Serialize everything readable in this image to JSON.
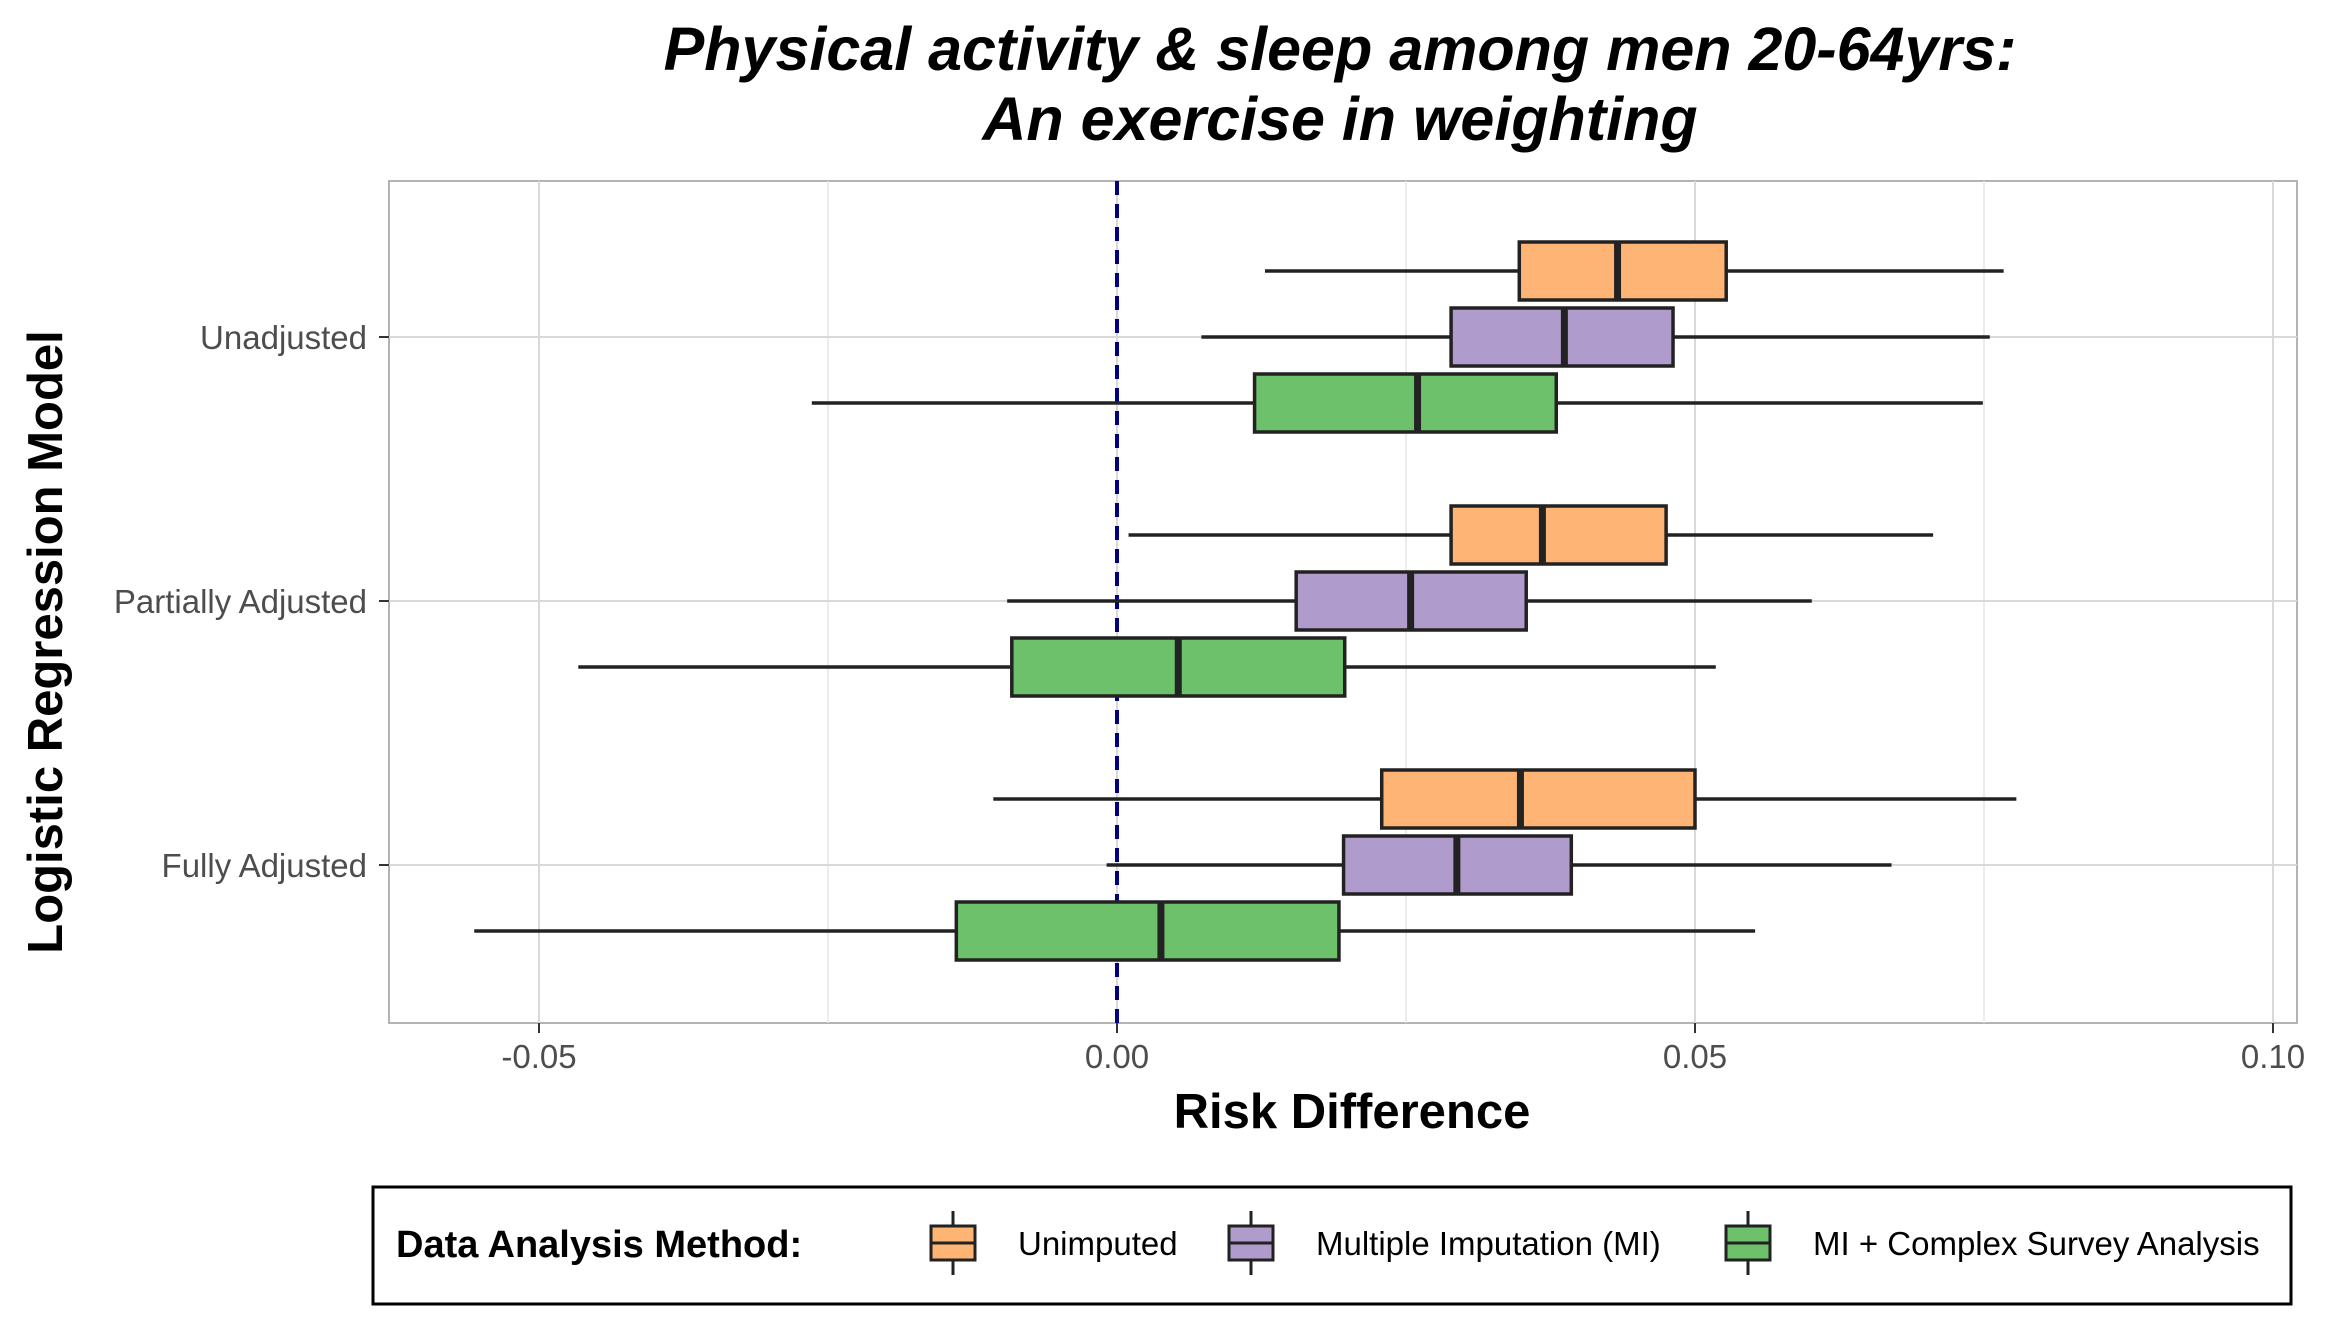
{
  "chart_data": {
    "type": "boxplot",
    "orientation": "horizontal",
    "title": [
      "Physical activity & sleep among men 20-64yrs:",
      "An exercise in weighting"
    ],
    "xlabel": "Risk Difference",
    "ylabel": "Logistic Regression Model",
    "xlim": [
      -0.063,
      0.1
    ],
    "x_ticks": [
      -0.05,
      0.0,
      0.05,
      0.1
    ],
    "x_tick_labels": [
      "-0.05",
      "0.00",
      "0.05",
      "0.10"
    ],
    "categories": [
      "Unadjusted",
      "Partially Adjusted",
      "Fully Adjusted"
    ],
    "reference_line": {
      "x": 0.0,
      "style": "dashed",
      "color": "#000080"
    },
    "grid": true,
    "legend": {
      "title": "Data Analysis Method:",
      "position": "bottom"
    },
    "series": [
      {
        "name": "Unimputed",
        "color": "#FDB474",
        "boxes": [
          {
            "category": "Unadjusted",
            "whisker_low": 0.0128,
            "q1": 0.0348,
            "median": 0.0433,
            "q3": 0.0527,
            "whisker_high": 0.0767
          },
          {
            "category": "Partially Adjusted",
            "whisker_low": 0.001,
            "q1": 0.0289,
            "median": 0.0368,
            "q3": 0.0475,
            "whisker_high": 0.0706
          },
          {
            "category": "Fully Adjusted",
            "whisker_low": -0.0107,
            "q1": 0.0229,
            "median": 0.0349,
            "q3": 0.05,
            "whisker_high": 0.0778
          }
        ]
      },
      {
        "name": "Multiple Imputation (MI)",
        "color": "#B09CCC",
        "boxes": [
          {
            "category": "Unadjusted",
            "whisker_low": 0.0073,
            "q1": 0.0289,
            "median": 0.0387,
            "q3": 0.0481,
            "whisker_high": 0.0755
          },
          {
            "category": "Partially Adjusted",
            "whisker_low": -0.0095,
            "q1": 0.0155,
            "median": 0.0254,
            "q3": 0.0354,
            "whisker_high": 0.0601
          },
          {
            "category": "Fully Adjusted",
            "whisker_low": -0.0009,
            "q1": 0.0196,
            "median": 0.0294,
            "q3": 0.0393,
            "whisker_high": 0.067
          }
        ]
      },
      {
        "name": "MI + Complex Survey Analysis",
        "color": "#6CC16A",
        "boxes": [
          {
            "category": "Unadjusted",
            "whisker_low": -0.0264,
            "q1": 0.0119,
            "median": 0.026,
            "q3": 0.038,
            "whisker_high": 0.0749
          },
          {
            "category": "Partially Adjusted",
            "whisker_low": -0.0466,
            "q1": -0.0091,
            "median": 0.0053,
            "q3": 0.0197,
            "whisker_high": 0.0518
          },
          {
            "category": "Fully Adjusted",
            "whisker_low": -0.0556,
            "q1": -0.0139,
            "median": 0.0038,
            "q3": 0.0192,
            "whisker_high": 0.0552
          }
        ]
      }
    ]
  }
}
